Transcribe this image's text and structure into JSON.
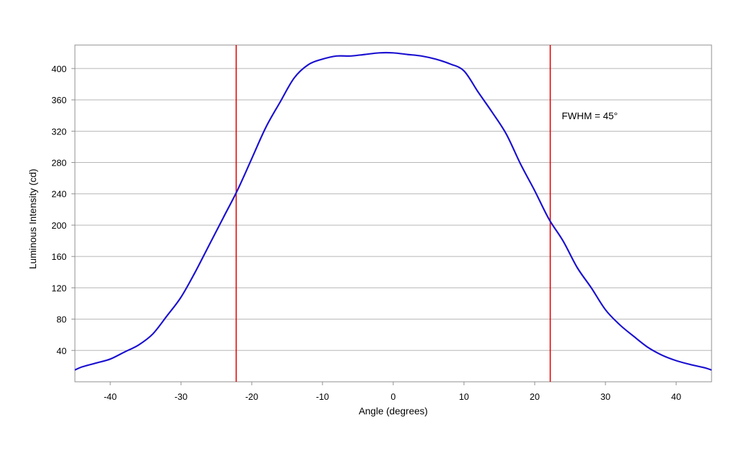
{
  "chart_data": {
    "type": "line",
    "title": "",
    "xlabel": "Angle (degrees)",
    "ylabel": "Luminous Intensity (cd)",
    "xlim": [
      -45,
      45
    ],
    "ylim": [
      0,
      430
    ],
    "xticks": [
      -40,
      -30,
      -20,
      -10,
      0,
      10,
      20,
      30,
      40
    ],
    "yticks": [
      40,
      80,
      120,
      160,
      200,
      240,
      280,
      320,
      360,
      400
    ],
    "grid": "horizontal",
    "legend": "none",
    "colors": {
      "curve": "#1a10d0",
      "markers": "#e00000",
      "grid": "#b4b4b4",
      "frame": "#8c8c8c"
    },
    "series": [
      {
        "x": [
          -45,
          -44,
          -42,
          -40,
          -38,
          -36,
          -34,
          -32,
          -30,
          -28,
          -26,
          -24,
          -22,
          -20,
          -18,
          -16,
          -14,
          -12,
          -10,
          -8,
          -6,
          -4,
          -2,
          0,
          2,
          4,
          6,
          8,
          10,
          12,
          14,
          16,
          18,
          20,
          22,
          24,
          26,
          28,
          30,
          32,
          34,
          36,
          38,
          40,
          42,
          44,
          45
        ],
        "y": [
          15,
          19,
          24,
          29,
          38,
          47,
          61,
          84,
          108,
          140,
          175,
          210,
          245,
          285,
          325,
          357,
          388,
          405,
          412,
          416,
          416,
          418,
          420,
          420,
          418,
          416,
          412,
          406,
          397,
          370,
          344,
          316,
          278,
          244,
          208,
          180,
          146,
          120,
          92,
          73,
          58,
          44,
          34,
          27,
          22,
          18,
          15
        ]
      }
    ],
    "markers": [
      {
        "x": -22.2,
        "label": ""
      },
      {
        "x": 22.2,
        "label": ""
      }
    ],
    "annotations": [
      {
        "text": "FWHM = 45°"
      }
    ]
  }
}
